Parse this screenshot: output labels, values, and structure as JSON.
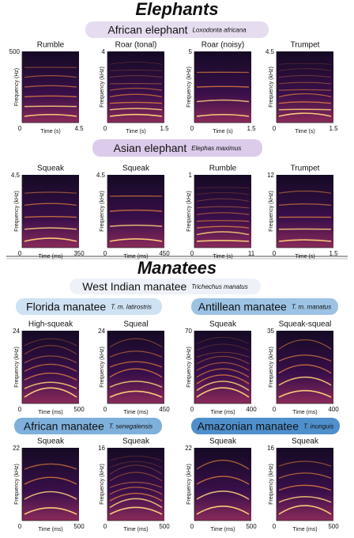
{
  "elephants": {
    "title": "Elephants",
    "species": [
      {
        "name": "African elephant",
        "latin": "Loxodonta africana",
        "panels": [
          {
            "title": "Rumble",
            "ymax": "500",
            "ylabel": "Frequency (Hz)",
            "x0": "0",
            "xmax": "4.5",
            "xlabel": "Time (s)"
          },
          {
            "title": "Roar (tonal)",
            "ymax": "4",
            "ylabel": "Frequency (kHz)",
            "x0": "0",
            "xmax": "1.5",
            "xlabel": "Time (s)"
          },
          {
            "title": "Roar (noisy)",
            "ymax": "5",
            "ylabel": "Frequency (kHz)",
            "x0": "0",
            "xmax": "1.5",
            "xlabel": "Time (s)"
          },
          {
            "title": "Trumpet",
            "ymax": "4.5",
            "ylabel": "Frequency (kHz)",
            "x0": "0",
            "xmax": "1.5",
            "xlabel": "Time (s)"
          }
        ]
      },
      {
        "name": "Asian elephant",
        "latin": "Elephas maximus",
        "panels": [
          {
            "title": "Squeak",
            "ymax": "4.5",
            "ylabel": "Frequency (kHz)",
            "x0": "0",
            "xmax": "350",
            "xlabel": "Time (ms)"
          },
          {
            "title": "Squeak",
            "ymax": "4.5",
            "ylabel": "Frequency (kHz)",
            "x0": "0",
            "xmax": "450",
            "xlabel": "Time (ms)"
          },
          {
            "title": "Rumble",
            "ymax": "1",
            "ylabel": "Frequency (kHz)",
            "x0": "0",
            "xmax": "11",
            "xlabel": "Time (s)"
          },
          {
            "title": "Trumpet",
            "ymax": "12",
            "ylabel": "Frequency (kHz)",
            "x0": "0",
            "xmax": "1.5",
            "xlabel": "Time (s)"
          }
        ]
      }
    ]
  },
  "manatees": {
    "title": "Manatees",
    "west_indian": {
      "name": "West Indian manatee",
      "latin": "Trichechus manatus"
    },
    "subspecies": [
      {
        "name": "Florida manatee",
        "latin": "T. m. latirostris",
        "panels": [
          {
            "title": "High-squeak",
            "ymax": "24",
            "ylabel": "Frequency (kHz)",
            "x0": "0",
            "xmax": "500",
            "xlabel": "Time (ms)"
          },
          {
            "title": "Squeal",
            "ymax": "24",
            "ylabel": "Frequency (kHz)",
            "x0": "0",
            "xmax": "450",
            "xlabel": "Time (ms)"
          }
        ]
      },
      {
        "name": "Antillean manatee",
        "latin": "T. m. manatus",
        "panels": [
          {
            "title": "Squeak",
            "ymax": "70",
            "ylabel": "Frequency (kHz)",
            "x0": "0",
            "xmax": "400",
            "xlabel": "Time (ms)"
          },
          {
            "title": "Squeak-squeal",
            "ymax": "35",
            "ylabel": "Frequency (kHz)",
            "x0": "0",
            "xmax": "400",
            "xlabel": "Time (ms)"
          }
        ]
      },
      {
        "name": "African manatee",
        "latin": "T. senegalensis",
        "panels": [
          {
            "title": "Squeak",
            "ymax": "22",
            "ylabel": "Frequency (kHz)",
            "x0": "0",
            "xmax": "500",
            "xlabel": "Time (ms)"
          },
          {
            "title": "Squeak",
            "ymax": "16",
            "ylabel": "Frequency (kHz)",
            "x0": "0",
            "xmax": "500",
            "xlabel": "Time (ms)"
          }
        ]
      },
      {
        "name": "Amazonian manatee",
        "latin": "T. inunguis",
        "panels": [
          {
            "title": "Squeak",
            "ymax": "22",
            "ylabel": "Frequency (kHz)",
            "x0": "0",
            "xmax": "500",
            "xlabel": "Time (ms)"
          },
          {
            "title": "Squeak",
            "ymax": "16",
            "ylabel": "Frequency (kHz)",
            "x0": "0",
            "xmax": "500",
            "xlabel": "Time (ms)"
          }
        ]
      }
    ]
  }
}
